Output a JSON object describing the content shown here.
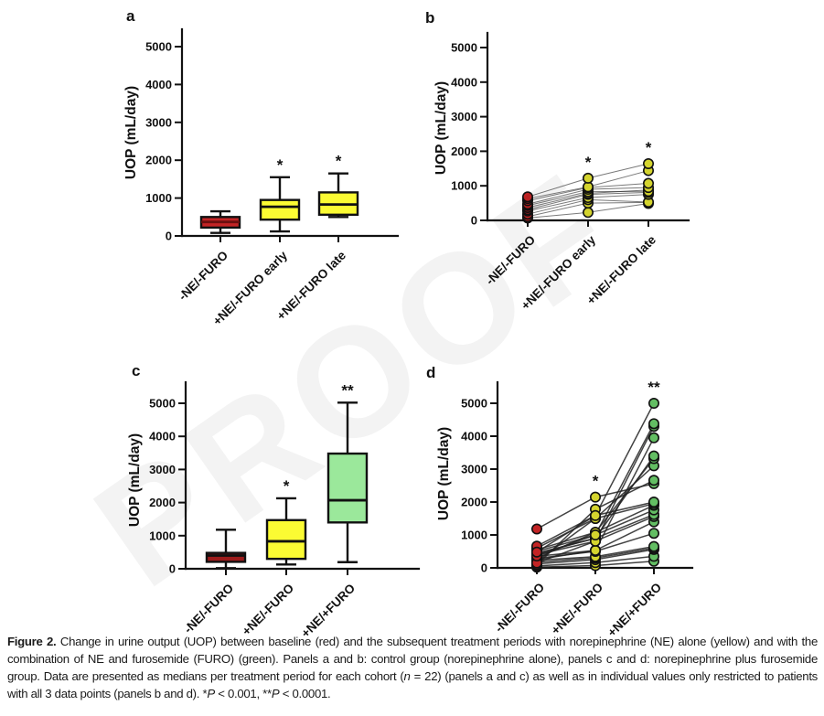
{
  "figure": {
    "watermark": "PROOF",
    "caption_segments": [
      {
        "t": "Figure 2.",
        "b": true
      },
      {
        "t": "  Change in urine output (UOP) between baseline (red) and the subsequent treatment periods with norepinephrine (NE) alone (yellow) and with the combination of NE and furosemide (FURO) (green). Panels a and b: control group (norepinephrine alone), panels c and d: norepinephrine plus furosemide group. Data are presented as medians per treatment period for each cohort ("
      },
      {
        "t": "n",
        "i": true
      },
      {
        "t": " = 22) (panels a and c) as well as in individual values only restricted to patients with all 3 data points (panels b and d). *"
      },
      {
        "t": "P",
        "i": true
      },
      {
        "t": " < 0.001, **"
      },
      {
        "t": "P",
        "i": true
      },
      {
        "t": " < 0.0001."
      }
    ]
  },
  "chart_data": [
    {
      "panel": "a",
      "type": "box",
      "title": "",
      "ylabel": "UOP (mL/day)",
      "xlabel": "",
      "ylim": [
        0,
        5500
      ],
      "yticks": [
        0,
        1000,
        2000,
        3000,
        4000,
        5000
      ],
      "grid": false,
      "categories": [
        "-NE/-FURO",
        "+NE/-FURO early",
        "+NE/-FURO late"
      ],
      "boxes": [
        {
          "color": "#C32425",
          "medianColor": "#6b0f0f",
          "min": 80,
          "q1": 220,
          "median": 370,
          "q3": 500,
          "max": 650,
          "sig": ""
        },
        {
          "color": "#FBFB33",
          "medianColor": "#111111",
          "min": 120,
          "q1": 430,
          "median": 770,
          "q3": 950,
          "max": 1550,
          "sig": "*"
        },
        {
          "color": "#FBFB33",
          "medianColor": "#111111",
          "min": 500,
          "q1": 560,
          "median": 830,
          "q3": 1150,
          "max": 1650,
          "sig": "*"
        }
      ]
    },
    {
      "panel": "b",
      "type": "paired",
      "title": "",
      "ylabel": "UOP (mL/day)",
      "xlabel": "",
      "ylim": [
        0,
        5500
      ],
      "yticks": [
        0,
        1000,
        2000,
        3000,
        4000,
        5000
      ],
      "grid": false,
      "categories": [
        "-NE/-FURO",
        "+NE/-FURO early",
        "+NE/-FURO late"
      ],
      "colors": [
        "#C32425",
        "#D4D42E",
        "#D4D42E"
      ],
      "sig": [
        "",
        "*",
        "*"
      ],
      "subjects": [
        [
          70,
          230,
          490
        ],
        [
          110,
          500,
          520
        ],
        [
          180,
          600,
          530
        ],
        [
          270,
          660,
          750
        ],
        [
          310,
          750,
          810
        ],
        [
          370,
          780,
          880
        ],
        [
          430,
          830,
          840
        ],
        [
          470,
          900,
          950
        ],
        [
          570,
          950,
          1070
        ],
        [
          630,
          970,
          1440
        ],
        [
          680,
          1220,
          1640
        ]
      ]
    },
    {
      "panel": "c",
      "type": "box",
      "title": "",
      "ylabel": "UOP (mL/day)",
      "xlabel": "",
      "ylim": [
        0,
        5500
      ],
      "yticks": [
        0,
        1000,
        2000,
        3000,
        4000,
        5000
      ],
      "grid": false,
      "categories": [
        "-NE/-FURO",
        "+NE/-FURO",
        "+NE/+FURO"
      ],
      "boxes": [
        {
          "color": "#9E1B1B",
          "medianColor": "#111111",
          "min": 20,
          "q1": 210,
          "median": 400,
          "q3": 480,
          "max": 1180,
          "sig": ""
        },
        {
          "color": "#FBFB33",
          "medianColor": "#111111",
          "min": 130,
          "q1": 300,
          "median": 830,
          "q3": 1470,
          "max": 2130,
          "sig": "*"
        },
        {
          "color": "#9BE89B",
          "medianColor": "#111111",
          "min": 200,
          "q1": 1400,
          "median": 2070,
          "q3": 3480,
          "max": 5020,
          "sig": "**"
        }
      ]
    },
    {
      "panel": "d",
      "type": "paired",
      "title": "",
      "ylabel": "UOP (mL/day)",
      "xlabel": "",
      "ylim": [
        0,
        5500
      ],
      "yticks": [
        0,
        1000,
        2000,
        3000,
        4000,
        5000
      ],
      "grid": false,
      "categories": [
        "-NE/-FURO",
        "+NE/-FURO",
        "+NE/+FURO"
      ],
      "colors": [
        "#C32425",
        "#D4D42E",
        "#63BE63"
      ],
      "sig": [
        "",
        "*",
        "**"
      ],
      "subjects": [
        [
          20,
          70,
          200
        ],
        [
          60,
          160,
          350
        ],
        [
          120,
          250,
          560
        ],
        [
          170,
          300,
          600
        ],
        [
          230,
          340,
          650
        ],
        [
          290,
          500,
          1050
        ],
        [
          350,
          530,
          1400
        ],
        [
          400,
          810,
          1560
        ],
        [
          450,
          900,
          1620
        ],
        [
          500,
          1000,
          1760
        ],
        [
          550,
          1080,
          1900
        ],
        [
          600,
          1500,
          1950
        ],
        [
          660,
          1590,
          2000
        ],
        [
          1180,
          2150,
          2560
        ],
        [
          100,
          1780,
          2660
        ],
        [
          200,
          1500,
          3100
        ],
        [
          300,
          1080,
          3320
        ],
        [
          420,
          900,
          3400
        ],
        [
          250,
          530,
          3950
        ],
        [
          150,
          810,
          4300
        ],
        [
          360,
          1000,
          4380
        ],
        [
          480,
          1590,
          5000
        ]
      ]
    }
  ]
}
